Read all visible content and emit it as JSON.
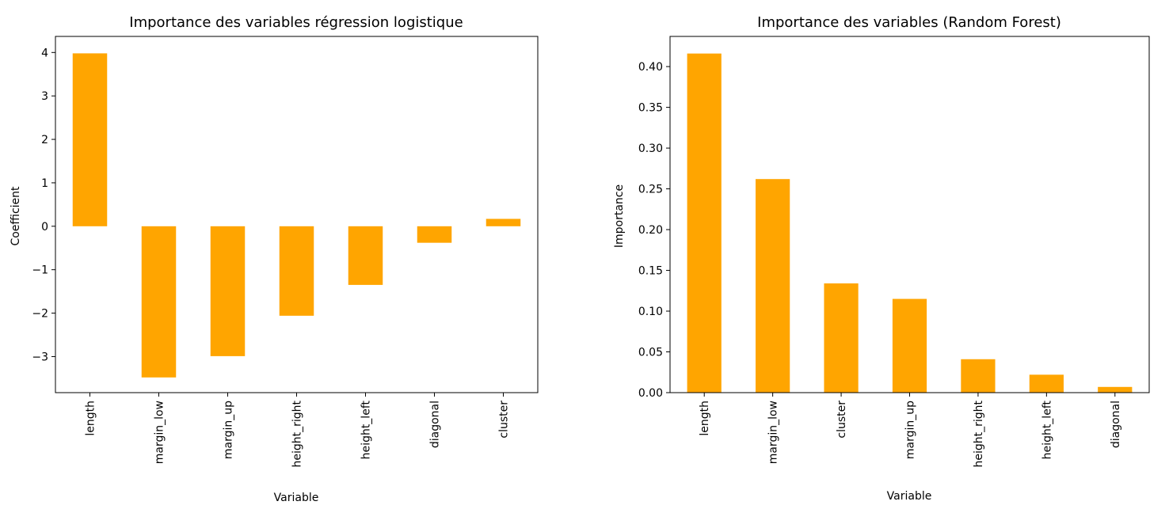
{
  "chart_data": [
    {
      "type": "bar",
      "title": "Importance des variables régression logistique",
      "xlabel": "Variable",
      "ylabel": "Coefficient",
      "categories": [
        "length",
        "margin_low",
        "margin_up",
        "height_right",
        "height_left",
        "diagonal",
        "cluster"
      ],
      "values": [
        3.98,
        -3.48,
        -2.99,
        -2.06,
        -1.35,
        -0.38,
        0.17
      ],
      "yticks": [
        -3,
        -2,
        -1,
        0,
        1,
        2,
        3,
        4
      ],
      "ytick_labels": [
        "−3",
        "−2",
        "−1",
        "0",
        "1",
        "2",
        "3",
        "4"
      ],
      "ylim": [
        -3.83,
        4.37
      ],
      "bar_color": "#FFA500",
      "grid": false
    },
    {
      "type": "bar",
      "title": "Importance des variables (Random Forest)",
      "xlabel": "Variable",
      "ylabel": "Importance",
      "categories": [
        "length",
        "margin_low",
        "cluster",
        "margin_up",
        "height_right",
        "height_left",
        "diagonal"
      ],
      "values": [
        0.416,
        0.262,
        0.134,
        0.115,
        0.041,
        0.022,
        0.007
      ],
      "yticks": [
        0,
        0.05,
        0.1,
        0.15,
        0.2,
        0.25,
        0.3,
        0.35,
        0.4
      ],
      "ytick_labels": [
        "0.00",
        "0.05",
        "0.10",
        "0.15",
        "0.20",
        "0.25",
        "0.30",
        "0.35",
        "0.40"
      ],
      "ylim": [
        0,
        0.437
      ],
      "bar_color": "#FFA500",
      "grid": false
    }
  ]
}
